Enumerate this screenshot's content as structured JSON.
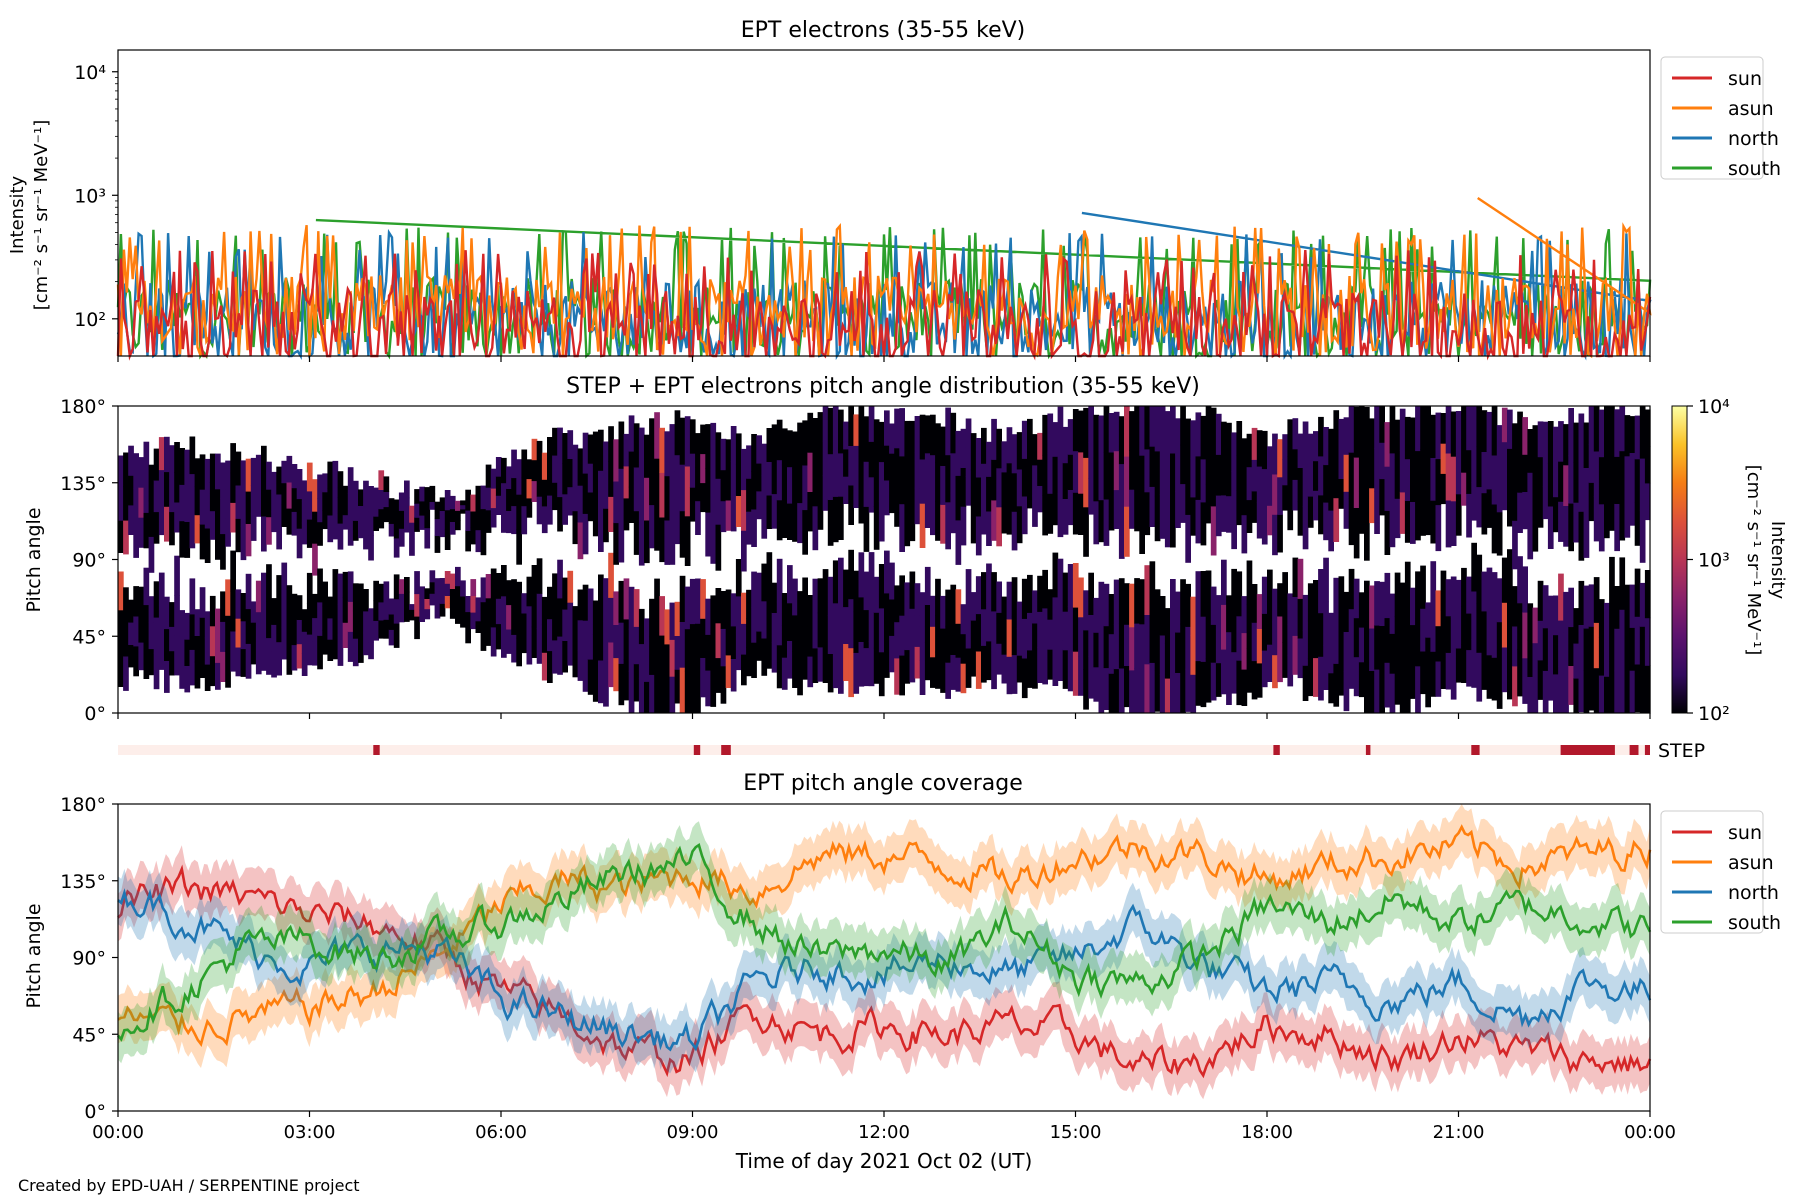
{
  "colors": {
    "sun": "#d62728",
    "asun": "#ff7f0e",
    "north": "#1f77b4",
    "south": "#2ca02c",
    "step_on": "#b2182b",
    "step_bg": "#fdeeea",
    "colormap": [
      "#000004",
      "#320a5e",
      "#5c126e",
      "#8a226a",
      "#b83655",
      "#dd513a",
      "#f57d15",
      "#fac228",
      "#fcffa4"
    ]
  },
  "x_axis": {
    "ticks": [
      "00:00",
      "03:00",
      "06:00",
      "09:00",
      "12:00",
      "15:00",
      "18:00",
      "21:00",
      "00:00"
    ],
    "label": "Time of day 2021 Oct 02 (UT)",
    "range_hours": [
      0,
      24
    ]
  },
  "footer": "Created by EPD-UAH / SERPENTINE project",
  "chart_data": [
    {
      "type": "line",
      "title": "EPT electrons (35-55 keV)",
      "ylabel_line1": "Intensity",
      "ylabel_line2": "[cm⁻² s⁻¹ sr⁻¹ MeV⁻¹]",
      "yscale": "log",
      "ylim": [
        50,
        15000
      ],
      "yticks": [
        "10⁴",
        "10³",
        "10²"
      ],
      "legend": {
        "placement": "outside-top-right",
        "entries": [
          "sun",
          "asun",
          "north",
          "south"
        ]
      },
      "series": [
        {
          "name": "sun",
          "baseline": 85,
          "typical_max": 300
        },
        {
          "name": "asun",
          "baseline": 110,
          "typical_max": 480,
          "peak": 950
        },
        {
          "name": "north",
          "baseline": 100,
          "typical_max": 420,
          "peak": 720
        },
        {
          "name": "south",
          "baseline": 105,
          "typical_max": 460,
          "peak": 630
        }
      ]
    },
    {
      "type": "heatmap",
      "title": "STEP + EPT electrons pitch angle distribution (35-55 keV)",
      "ylabel": "Pitch angle",
      "ylim": [
        0,
        180
      ],
      "yticks": [
        "180°",
        "135°",
        "90°",
        "45°",
        "0°"
      ],
      "colorbar": {
        "scale": "log",
        "range": [
          100,
          10000
        ],
        "ticks": [
          "10⁴",
          "10³",
          "10²"
        ],
        "label_line1": "Intensity",
        "label_line2": "[cm⁻² s⁻¹ sr⁻¹ MeV⁻¹]"
      }
    },
    {
      "type": "bar",
      "label": "STEP",
      "active_intervals_hours": [
        [
          4.0,
          4.1
        ],
        [
          9.02,
          9.12
        ],
        [
          9.45,
          9.6
        ],
        [
          18.1,
          18.2
        ],
        [
          19.55,
          19.62
        ],
        [
          21.2,
          21.33
        ],
        [
          22.6,
          23.45
        ],
        [
          23.68,
          23.82
        ],
        [
          23.92,
          24.0
        ]
      ]
    },
    {
      "type": "line",
      "title": "EPT pitch angle coverage",
      "ylabel": "Pitch angle",
      "ylim": [
        0,
        180
      ],
      "yticks": [
        "180°",
        "135°",
        "90°",
        "45°",
        "0°"
      ],
      "legend": {
        "placement": "outside-top-right",
        "entries": [
          "sun",
          "asun",
          "north",
          "south"
        ]
      },
      "x_hours": [
        0,
        1,
        2,
        3,
        4,
        5,
        6,
        7,
        8,
        9,
        10,
        11,
        12,
        13,
        14,
        15,
        16,
        17,
        18,
        19,
        20,
        21,
        22,
        23,
        24
      ],
      "series": [
        {
          "name": "sun",
          "values": [
            120,
            130,
            125,
            115,
            110,
            95,
            70,
            55,
            35,
            30,
            60,
            45,
            50,
            45,
            50,
            45,
            25,
            30,
            50,
            45,
            30,
            45,
            35,
            30,
            28
          ]
        },
        {
          "name": "asun",
          "values": [
            55,
            50,
            55,
            60,
            70,
            90,
            120,
            135,
            130,
            140,
            130,
            150,
            150,
            145,
            135,
            150,
            155,
            150,
            135,
            145,
            150,
            155,
            145,
            150,
            155
          ]
        },
        {
          "name": "north",
          "values": [
            130,
            115,
            95,
            85,
            95,
            95,
            65,
            55,
            45,
            40,
            75,
            85,
            80,
            90,
            80,
            90,
            110,
            85,
            70,
            75,
            65,
            75,
            55,
            75,
            70
          ]
        },
        {
          "name": "south",
          "values": [
            50,
            70,
            95,
            100,
            90,
            100,
            110,
            125,
            140,
            145,
            110,
            90,
            95,
            85,
            110,
            80,
            75,
            90,
            120,
            110,
            125,
            110,
            120,
            115,
            105
          ]
        }
      ]
    }
  ]
}
